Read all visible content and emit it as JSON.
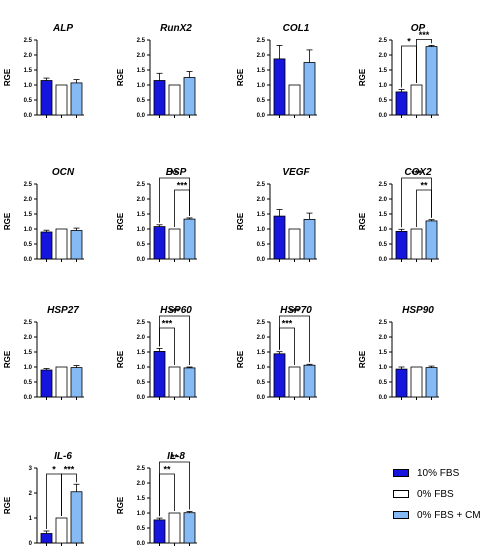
{
  "series": [
    {
      "name": "10% FBS",
      "color": "#1515dd"
    },
    {
      "name": "0% FBS",
      "color": "#ffffff"
    },
    {
      "name": "0% FBS + CM",
      "color": "#86baf5"
    }
  ],
  "chart_data": [
    {
      "type": "bar",
      "title": "ALP",
      "ylabel": "RGE",
      "ylim": [
        0,
        2.5
      ],
      "yticks": [
        "0.0",
        "0.5",
        "1.0",
        "1.5",
        "2.0",
        "2.5"
      ],
      "values": [
        1.15,
        1.0,
        1.07
      ],
      "errors": [
        0.08,
        0.0,
        0.11
      ],
      "annotations": []
    },
    {
      "type": "bar",
      "title": "RunX2",
      "ylabel": "RGE",
      "ylim": [
        0,
        2.5
      ],
      "yticks": [
        "0.0",
        "0.5",
        "1.0",
        "1.5",
        "2.0",
        "2.5"
      ],
      "values": [
        1.15,
        1.0,
        1.25
      ],
      "errors": [
        0.24,
        0.0,
        0.2
      ],
      "annotations": []
    },
    {
      "type": "bar",
      "title": "COL1",
      "ylabel": "RGE",
      "ylim": [
        0,
        2.5
      ],
      "yticks": [
        "0.0",
        "0.5",
        "1.0",
        "1.5",
        "2.0",
        "2.5"
      ],
      "values": [
        1.87,
        1.0,
        1.75
      ],
      "errors": [
        0.45,
        0.0,
        0.42
      ],
      "annotations": []
    },
    {
      "type": "bar",
      "title": "OP",
      "ylabel": "RGE",
      "ylim": [
        0,
        2.5
      ],
      "yticks": [
        "0.0",
        "0.5",
        "1.0",
        "1.5",
        "2.0",
        "2.5"
      ],
      "values": [
        0.77,
        1.0,
        2.28
      ],
      "errors": [
        0.08,
        0.0,
        0.04
      ],
      "annotations": [
        {
          "from": 0,
          "to": 1,
          "label": "*",
          "level": 0
        },
        {
          "from": 1,
          "to": 2,
          "label": "***",
          "level": 0
        }
      ]
    },
    {
      "type": "bar",
      "title": "OCN",
      "ylabel": "RGE",
      "ylim": [
        0,
        2.5
      ],
      "yticks": [
        "0.0",
        "0.5",
        "1.0",
        "1.5",
        "2.0",
        "2.5"
      ],
      "values": [
        0.9,
        1.0,
        0.95
      ],
      "errors": [
        0.06,
        0.0,
        0.08
      ],
      "annotations": []
    },
    {
      "type": "bar",
      "title": "BSP",
      "ylabel": "RGE",
      "ylim": [
        0,
        2.5
      ],
      "yticks": [
        "0.0",
        "0.5",
        "1.0",
        "1.5",
        "2.0",
        "2.5"
      ],
      "values": [
        1.08,
        1.0,
        1.33
      ],
      "errors": [
        0.06,
        0.0,
        0.04
      ],
      "annotations": [
        {
          "from": 0,
          "to": 2,
          "label": "**",
          "level": 1
        },
        {
          "from": 1,
          "to": 2,
          "label": "***",
          "level": 0
        }
      ]
    },
    {
      "type": "bar",
      "title": "VEGF",
      "ylabel": "RGE",
      "ylim": [
        0,
        2.5
      ],
      "yticks": [
        "0.0",
        "0.5",
        "1.0",
        "1.5",
        "2.0",
        "2.5"
      ],
      "values": [
        1.43,
        1.0,
        1.32
      ],
      "errors": [
        0.22,
        0.0,
        0.21
      ],
      "annotations": []
    },
    {
      "type": "bar",
      "title": "COX2",
      "ylabel": "RGE",
      "ylim": [
        0,
        2.5
      ],
      "yticks": [
        "0.0",
        "0.5",
        "1.0",
        "1.5",
        "2.0",
        "2.5"
      ],
      "values": [
        0.92,
        1.0,
        1.27
      ],
      "errors": [
        0.07,
        0.0,
        0.04
      ],
      "annotations": [
        {
          "from": 0,
          "to": 2,
          "label": "***",
          "level": 1
        },
        {
          "from": 1,
          "to": 2,
          "label": "**",
          "level": 0
        }
      ]
    },
    {
      "type": "bar",
      "title": "HSP27",
      "ylabel": "RGE",
      "ylim": [
        0,
        2.5
      ],
      "yticks": [
        "0.0",
        "0.5",
        "1.0",
        "1.5",
        "2.0",
        "2.5"
      ],
      "values": [
        0.9,
        1.0,
        0.98
      ],
      "errors": [
        0.05,
        0.0,
        0.07
      ],
      "annotations": []
    },
    {
      "type": "bar",
      "title": "HSP60",
      "ylabel": "RGE",
      "ylim": [
        0,
        2.5
      ],
      "yticks": [
        "0.0",
        "0.5",
        "1.0",
        "1.5",
        "2.0",
        "2.5"
      ],
      "values": [
        1.52,
        1.0,
        0.97
      ],
      "errors": [
        0.1,
        0.0,
        0.03
      ],
      "annotations": [
        {
          "from": 0,
          "to": 1,
          "label": "***",
          "level": 0
        },
        {
          "from": 0,
          "to": 2,
          "label": "***",
          "level": 1
        }
      ]
    },
    {
      "type": "bar",
      "title": "HSP70",
      "ylabel": "RGE",
      "ylim": [
        0,
        2.5
      ],
      "yticks": [
        "0.0",
        "0.5",
        "1.0",
        "1.5",
        "2.0",
        "2.5"
      ],
      "values": [
        1.44,
        1.0,
        1.06
      ],
      "errors": [
        0.07,
        0.0,
        0.03
      ],
      "annotations": [
        {
          "from": 0,
          "to": 1,
          "label": "***",
          "level": 0
        },
        {
          "from": 0,
          "to": 2,
          "label": "***",
          "level": 1
        }
      ]
    },
    {
      "type": "bar",
      "title": "HSP90",
      "ylabel": "RGE",
      "ylim": [
        0,
        2.5
      ],
      "yticks": [
        "0.0",
        "0.5",
        "1.0",
        "1.5",
        "2.0",
        "2.5"
      ],
      "values": [
        0.93,
        1.0,
        0.98
      ],
      "errors": [
        0.07,
        0.0,
        0.05
      ],
      "annotations": []
    },
    {
      "type": "bar",
      "title": "IL-6",
      "ylabel": "RGE",
      "ylim": [
        0,
        3
      ],
      "yticks": [
        "0",
        "1",
        "2",
        "3"
      ],
      "values": [
        0.38,
        1.0,
        2.05
      ],
      "errors": [
        0.1,
        0.0,
        0.3
      ],
      "annotations": [
        {
          "from": 0,
          "to": 1,
          "label": "*",
          "level": 0
        },
        {
          "from": 1,
          "to": 2,
          "label": "***",
          "level": 0
        }
      ]
    },
    {
      "type": "bar",
      "title": "IL-8",
      "ylabel": "RGE",
      "ylim": [
        0,
        2.5
      ],
      "yticks": [
        "0.0",
        "0.5",
        "1.0",
        "1.5",
        "2.0",
        "2.5"
      ],
      "values": [
        0.77,
        1.0,
        1.01
      ],
      "errors": [
        0.06,
        0.0,
        0.04
      ],
      "annotations": [
        {
          "from": 0,
          "to": 1,
          "label": "**",
          "level": 0
        },
        {
          "from": 0,
          "to": 2,
          "label": "**",
          "level": 1
        }
      ]
    }
  ]
}
